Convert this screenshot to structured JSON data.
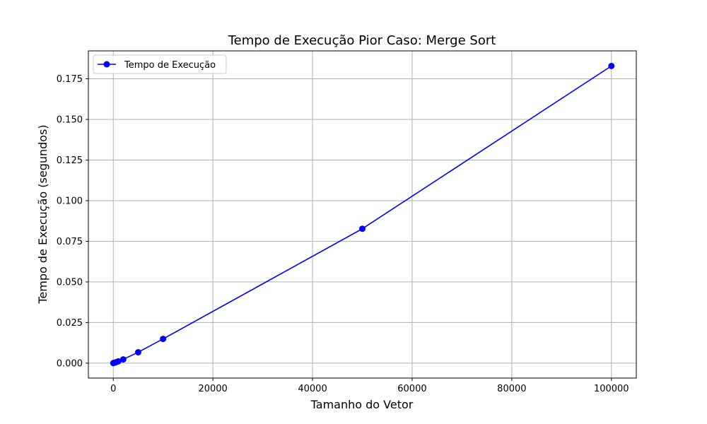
{
  "chart_data": {
    "type": "line",
    "title": "Tempo de Execução Pior Caso: Merge Sort",
    "xlabel": "Tamanho do Vetor",
    "ylabel": "Tempo de Execução (segundos)",
    "xlim": [
      -5000,
      105000
    ],
    "ylim": [
      -0.0092,
      0.1922
    ],
    "xticks": [
      0,
      20000,
      40000,
      60000,
      80000,
      100000
    ],
    "xtick_labels": [
      "0",
      "20000",
      "40000",
      "60000",
      "80000",
      "100000"
    ],
    "yticks": [
      0.0,
      0.025,
      0.05,
      0.075,
      0.1,
      0.125,
      0.15,
      0.175
    ],
    "ytick_labels": [
      "0.000",
      "0.025",
      "0.050",
      "0.075",
      "0.100",
      "0.125",
      "0.150",
      "0.175"
    ],
    "grid": true,
    "legend_position": "top-left",
    "series": [
      {
        "name": "Tempo de Execução",
        "color": "#0000ff",
        "marker": "circle",
        "x": [
          10,
          100,
          500,
          1000,
          2000,
          5000,
          10000,
          50000,
          100000
        ],
        "y": [
          1e-05,
          0.0001,
          0.0005,
          0.0011,
          0.0023,
          0.0067,
          0.0149,
          0.0827,
          0.1829
        ]
      }
    ]
  }
}
